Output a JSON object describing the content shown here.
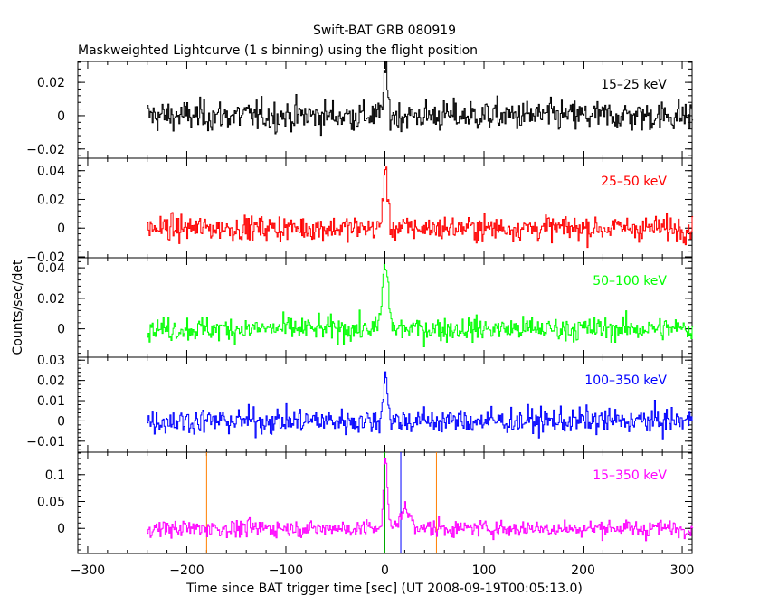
{
  "chart_data": {
    "type": "line",
    "title": "Swift-BAT GRB 080919",
    "subtitle": "Maskweighted Lightcurve (1 s binning) using the flight position",
    "xlabel": "Time since BAT trigger time [sec] (UT 2008-09-19T00:05:13.0)",
    "ylabel": "Counts/sec/det",
    "xlim": [
      -310,
      310
    ],
    "x_ticks": [
      -300,
      -200,
      -100,
      0,
      100,
      200,
      300
    ],
    "data_range_x": [
      -240,
      310
    ],
    "panels": [
      {
        "name": "15–25 keV",
        "color": "#000000",
        "ylim": [
          -0.025,
          0.032
        ],
        "y_ticks": [
          -0.02,
          0,
          0.02
        ],
        "y_tick_labels": [
          "−0.02",
          "0",
          "0.02"
        ],
        "noise_sigma": 0.0065,
        "peak": {
          "x": 0,
          "value": 0.027,
          "width": 2
        },
        "secondary_peak": null,
        "markers": []
      },
      {
        "name": "25–50 keV",
        "color": "#ff0000",
        "ylim": [
          -0.02,
          0.048
        ],
        "y_ticks": [
          -0.02,
          0,
          0.02,
          0.04
        ],
        "y_tick_labels": [
          "−0.02",
          "0",
          "0.02",
          "0.04"
        ],
        "noise_sigma": 0.006,
        "peak": {
          "x": 0,
          "value": 0.043,
          "width": 2
        },
        "secondary_peak": null,
        "markers": []
      },
      {
        "name": "50–100 keV",
        "color": "#00ff00",
        "ylim": [
          -0.018,
          0.046
        ],
        "y_ticks": [
          0,
          0.02,
          0.04
        ],
        "y_tick_labels": [
          "0",
          "0.02",
          "0.04"
        ],
        "noise_sigma": 0.0055,
        "peak": {
          "x": 0,
          "value": 0.041,
          "width": 3
        },
        "secondary_peak": null,
        "markers": []
      },
      {
        "name": "100–350 keV",
        "color": "#0000ff",
        "ylim": [
          -0.015,
          0.031
        ],
        "y_ticks": [
          -0.01,
          0,
          0.01,
          0.02,
          0.03
        ],
        "y_tick_labels": [
          "−0.01",
          "0",
          "0.01",
          "0.02",
          "0.03"
        ],
        "noise_sigma": 0.0045,
        "peak": {
          "x": 0,
          "value": 0.025,
          "width": 2
        },
        "secondary_peak": null,
        "markers": []
      },
      {
        "name": "15–350 keV",
        "color": "#ff00ff",
        "ylim": [
          -0.045,
          0.14
        ],
        "y_ticks": [
          0,
          0.05,
          0.1
        ],
        "y_tick_labels": [
          "0",
          "0.05",
          "0.1"
        ],
        "noise_sigma": 0.011,
        "peak": {
          "x": 0,
          "value": 0.122,
          "width": 2
        },
        "secondary_peak": {
          "x": 20,
          "value": 0.04,
          "width": 6
        },
        "markers": [
          {
            "x": -180,
            "color": "#ff7f00"
          },
          {
            "x": 0,
            "color": "#00aa00"
          },
          {
            "x": 16,
            "color": "#0000ff"
          },
          {
            "x": 52,
            "color": "#ff7f00"
          }
        ]
      }
    ]
  }
}
